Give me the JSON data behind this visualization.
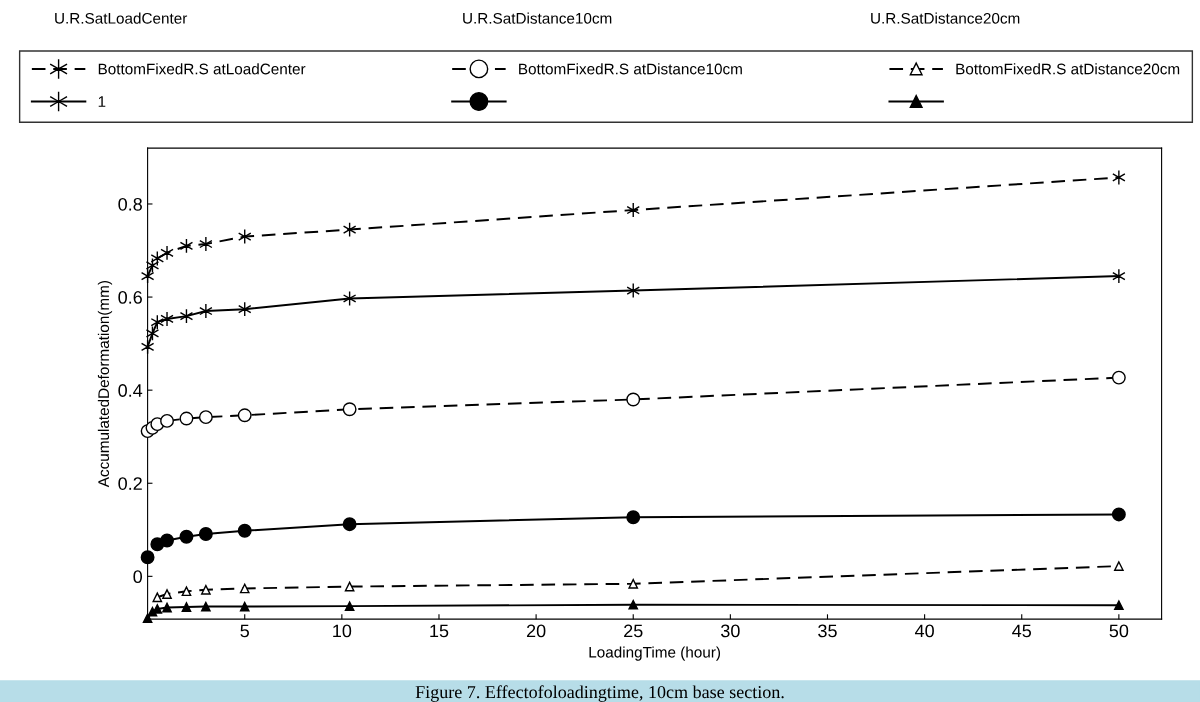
{
  "chart_data": {
    "type": "line",
    "title": "Figure 7. Effectofoloadingtime, 10cm base section.",
    "xlabel": "LoadingTime (hour)",
    "ylabel": "AccumulatedDeformation(mm)",
    "annotations": [
      "U.R.SatLoadCenter",
      "U.R.SatDistance10cm",
      "U.R.SatDistance20cm"
    ],
    "x": [
      0,
      0.25,
      0.5,
      1,
      2,
      3,
      5,
      10.4,
      25,
      50
    ],
    "series": [
      {
        "name": "BottomFixedR.S atLoadCenter",
        "color": "#000000",
        "marker": "cross",
        "line_style": "dashed",
        "values": [
          0.645,
          0.668,
          0.683,
          0.695,
          0.71,
          0.714,
          0.73,
          0.745,
          0.787,
          0.857
        ]
      },
      {
        "name": "1",
        "color": "#000000",
        "marker": "cross",
        "line_style": "solid",
        "values": [
          0.493,
          0.522,
          0.546,
          0.553,
          0.559,
          0.57,
          0.574,
          0.597,
          0.614,
          0.645
        ]
      },
      {
        "name": "BottomFixedR.S atDistance10cm",
        "color": "#000000",
        "marker": "circle",
        "line_style": "dashed",
        "values": [
          0.312,
          0.319,
          0.327,
          0.334,
          0.339,
          0.342,
          0.346,
          0.359,
          0.38,
          0.427
        ]
      },
      {
        "color": "#000000",
        "marker": "circle",
        "line_style": "solid",
        "values": [
          0.041,
          null,
          0.069,
          0.077,
          0.085,
          0.091,
          0.098,
          0.112,
          0.127,
          0.133
        ]
      },
      {
        "name": "BottomFixedR.S atDistance20cm",
        "color": "#000000",
        "marker": "triangle",
        "line_style": "dashed",
        "values": [
          null,
          null,
          -0.045,
          -0.038,
          -0.032,
          -0.029,
          -0.026,
          -0.022,
          -0.016,
          0.022
        ]
      },
      {
        "color": "#000000",
        "marker": "triangle",
        "line_style": "solid",
        "values": [
          -0.09,
          -0.076,
          -0.07,
          -0.067,
          -0.066,
          -0.065,
          -0.065,
          -0.064,
          -0.061,
          -0.062
        ]
      }
    ],
    "xlim": [
      0,
      52.2
    ],
    "xticks": [
      5,
      10,
      15,
      20,
      25,
      30,
      35,
      40,
      45,
      50
    ],
    "ylim": [
      -0.092,
      0.92
    ],
    "yticks": [
      0,
      0.2,
      0.4,
      0.6,
      0.8
    ],
    "grid": false,
    "legend": "top"
  }
}
